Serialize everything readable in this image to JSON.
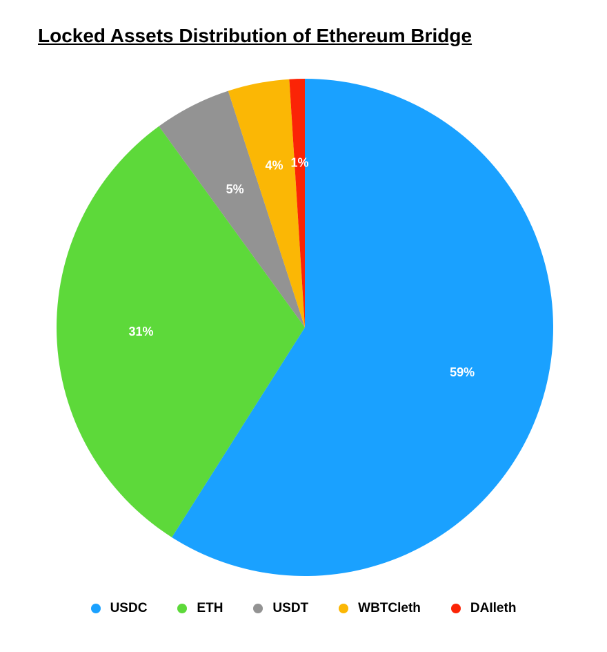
{
  "chart_data": {
    "type": "pie",
    "title": "Locked Assets Distribution of Ethereum Bridge",
    "start_angle_deg": 0,
    "direction": "clockwise",
    "legend_position": "bottom",
    "slices": [
      {
        "name": "USDC",
        "value": 59,
        "label": "59%",
        "color": "#1aa1ff"
      },
      {
        "name": "ETH",
        "value": 31,
        "label": "31%",
        "color": "#5dd93a"
      },
      {
        "name": "USDT",
        "value": 5,
        "label": "5%",
        "color": "#939393"
      },
      {
        "name": "WBTCleth",
        "value": 4,
        "label": "4%",
        "color": "#fbb705"
      },
      {
        "name": "DAIleth",
        "value": 1,
        "label": "1%",
        "color": "#fb2406"
      }
    ]
  }
}
